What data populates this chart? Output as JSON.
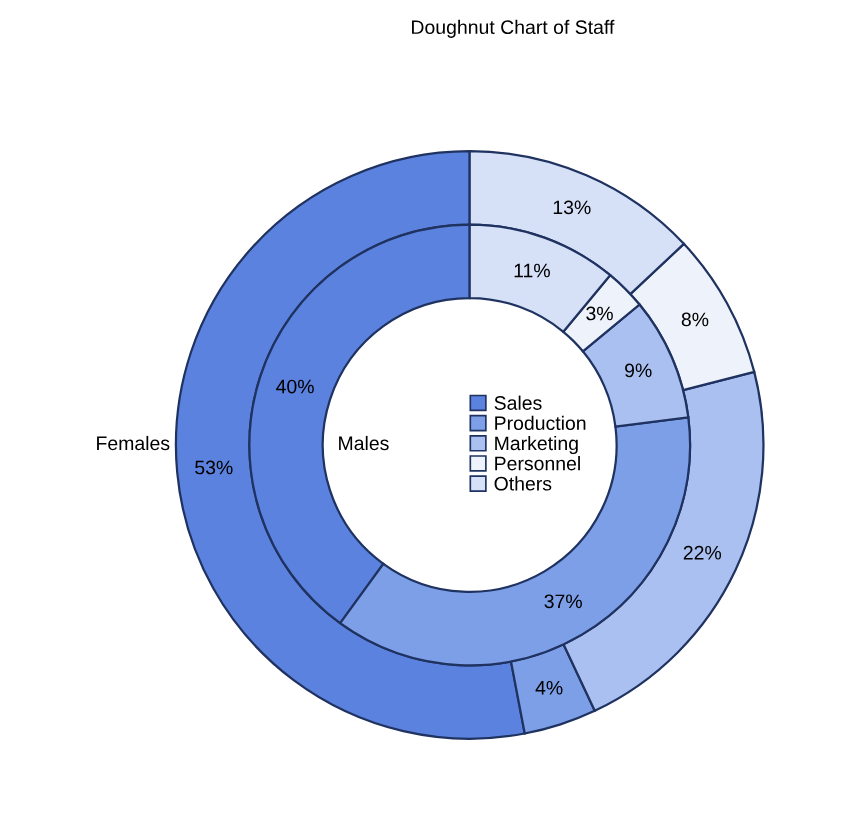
{
  "chart_data": {
    "type": "donut",
    "title": "Doughnut Chart of Staff",
    "categories": [
      "Sales",
      "Production",
      "Marketing",
      "Personnel",
      "Others"
    ],
    "colors": [
      "#5b82de",
      "#7c9fe8",
      "#a9c0f0",
      "#eef2fb",
      "#d6e1f7"
    ],
    "series": [
      {
        "name": "Females",
        "values": [
          53,
          4,
          22,
          8,
          13
        ],
        "value_labels": [
          "53%",
          "4%",
          "22%",
          "8%",
          "13%"
        ]
      },
      {
        "name": "Males",
        "values": [
          40,
          37,
          9,
          3,
          11
        ],
        "value_labels": [
          "40%",
          "37%",
          "9%",
          "3%",
          "11%"
        ]
      }
    ],
    "legend": "center"
  }
}
